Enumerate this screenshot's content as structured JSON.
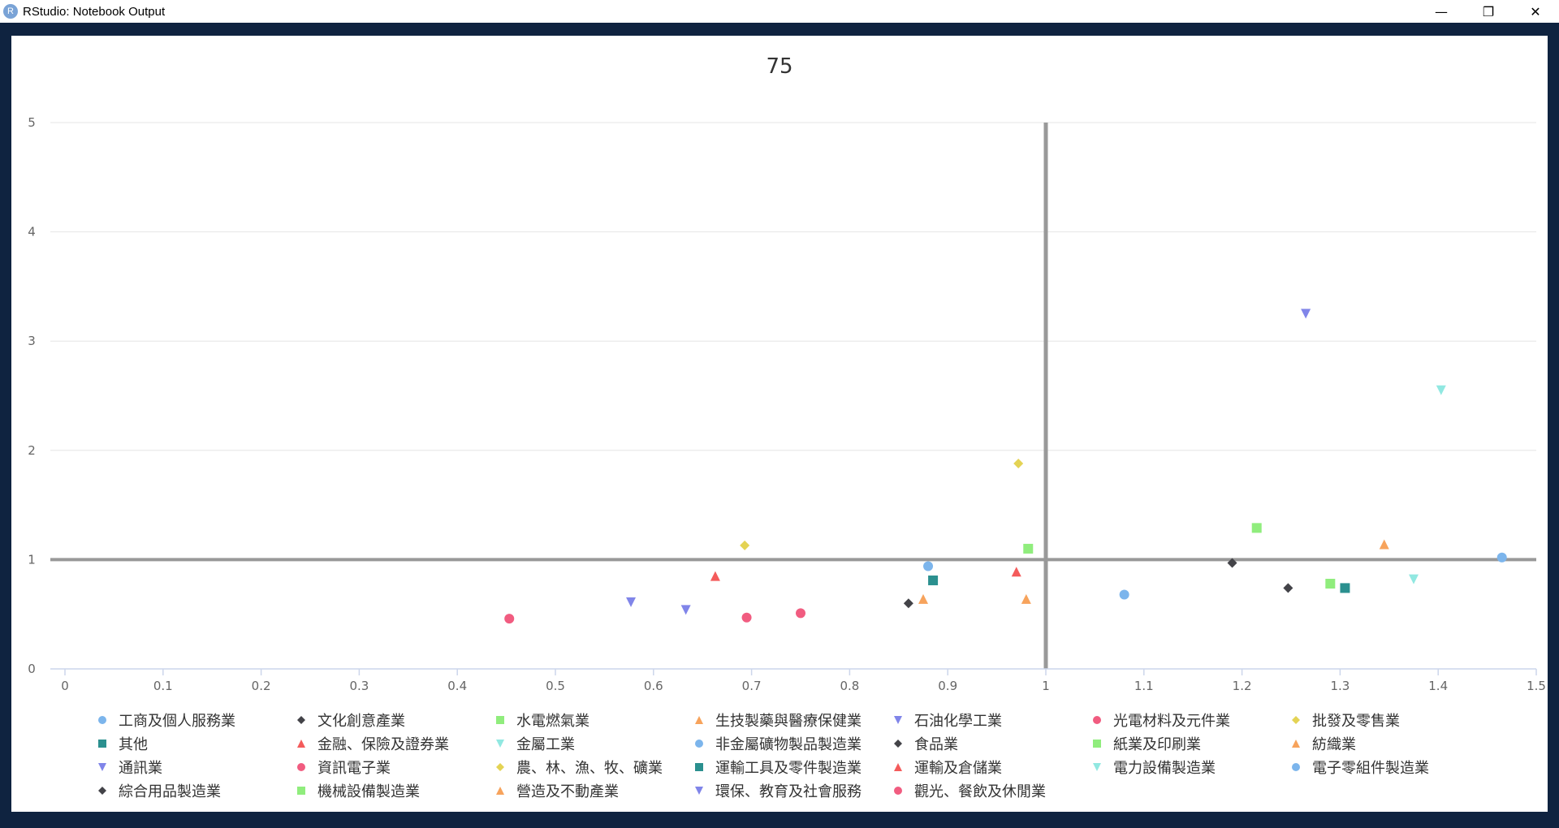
{
  "window": {
    "icon_letter": "R",
    "title": "RStudio: Notebook Output",
    "controls": {
      "minimize": "—",
      "restore": "❐",
      "close": "✕"
    }
  },
  "colors": {
    "frame": "#0f2340",
    "grid": "#e6e6e6",
    "axis": "#ccd6eb",
    "reference_line": "#999999"
  },
  "chart_data": {
    "type": "scatter",
    "title": "75",
    "xlabel": "",
    "ylabel": "",
    "xlim": [
      0,
      1.5
    ],
    "ylim": [
      0,
      5
    ],
    "x_ticks": [
      "0",
      "0.1",
      "0.2",
      "0.3",
      "0.4",
      "0.5",
      "0.6",
      "0.7",
      "0.8",
      "0.9",
      "1",
      "1.1",
      "1.2",
      "1.3",
      "1.4",
      "1.5"
    ],
    "y_ticks": [
      "0",
      "1",
      "2",
      "3",
      "4",
      "5"
    ],
    "grid": true,
    "reference_lines": {
      "x": 1,
      "y": 1
    },
    "legend_position": "bottom",
    "series": [
      {
        "name": "工商及個人服務業",
        "marker": "circle",
        "color": "#7cb5ec",
        "points": [
          [
            1.08,
            0.68
          ]
        ]
      },
      {
        "name": "文化創意產業",
        "marker": "diamond",
        "color": "#434348",
        "points": [
          [
            1.19,
            0.97
          ]
        ]
      },
      {
        "name": "水電燃氣業",
        "marker": "square",
        "color": "#90ed7d",
        "points": [
          [
            1.215,
            1.29
          ]
        ]
      },
      {
        "name": "生技製藥與醫療保健業",
        "marker": "triangle",
        "color": "#f7a35c",
        "points": [
          [
            1.345,
            1.14
          ]
        ]
      },
      {
        "name": "石油化學工業",
        "marker": "triangle-down",
        "color": "#8085e9",
        "points": [
          [
            1.265,
            3.25
          ]
        ]
      },
      {
        "name": "光電材料及元件業",
        "marker": "circle",
        "color": "#f15c80",
        "points": [
          [
            0.695,
            0.47
          ]
        ]
      },
      {
        "name": "批發及零售業",
        "marker": "diamond",
        "color": "#e4d354",
        "points": [
          [
            0.972,
            1.88
          ]
        ]
      },
      {
        "name": "其他",
        "marker": "square",
        "color": "#2b908f",
        "points": [
          [
            1.305,
            0.74
          ]
        ]
      },
      {
        "name": "金融、保險及證券業",
        "marker": "triangle",
        "color": "#f45b5b",
        "points": [
          [
            0.97,
            0.89
          ]
        ]
      },
      {
        "name": "金屬工業",
        "marker": "triangle-down",
        "color": "#91e8e1",
        "points": [
          [
            1.403,
            2.55
          ]
        ]
      },
      {
        "name": "非金屬礦物製品製造業",
        "marker": "circle",
        "color": "#7cb5ec",
        "points": [
          [
            0.88,
            0.94
          ]
        ]
      },
      {
        "name": "食品業",
        "marker": "diamond",
        "color": "#434348",
        "points": [
          [
            1.247,
            0.74
          ]
        ]
      },
      {
        "name": "紙業及印刷業",
        "marker": "square",
        "color": "#90ed7d",
        "points": [
          [
            1.29,
            0.78
          ]
        ]
      },
      {
        "name": "紡織業",
        "marker": "triangle",
        "color": "#f7a35c",
        "points": [
          [
            0.875,
            0.64
          ]
        ]
      },
      {
        "name": "通訊業",
        "marker": "triangle-down",
        "color": "#8085e9",
        "points": [
          [
            0.633,
            0.54
          ]
        ]
      },
      {
        "name": "資訊電子業",
        "marker": "circle",
        "color": "#f15c80",
        "points": [
          [
            0.75,
            0.51
          ]
        ]
      },
      {
        "name": "農、林、漁、牧、礦業",
        "marker": "diamond",
        "color": "#e4d354",
        "points": [
          [
            0.693,
            1.13
          ]
        ]
      },
      {
        "name": "運輸工具及零件製造業",
        "marker": "square",
        "color": "#2b908f",
        "points": [
          [
            0.885,
            0.81
          ]
        ]
      },
      {
        "name": "運輸及倉儲業",
        "marker": "triangle",
        "color": "#f45b5b",
        "points": [
          [
            0.663,
            0.85
          ]
        ]
      },
      {
        "name": "電力設備製造業",
        "marker": "triangle-down",
        "color": "#91e8e1",
        "points": [
          [
            1.375,
            0.82
          ]
        ]
      },
      {
        "name": "電子零組件製造業",
        "marker": "circle",
        "color": "#7cb5ec",
        "points": [
          [
            1.465,
            1.02
          ]
        ]
      },
      {
        "name": "綜合用品製造業",
        "marker": "diamond",
        "color": "#434348",
        "points": [
          [
            0.86,
            0.6
          ]
        ]
      },
      {
        "name": "機械設備製造業",
        "marker": "square",
        "color": "#90ed7d",
        "points": [
          [
            0.982,
            1.1
          ]
        ]
      },
      {
        "name": "營造及不動產業",
        "marker": "triangle",
        "color": "#f7a35c",
        "points": [
          [
            0.98,
            0.64
          ]
        ]
      },
      {
        "name": "環保、教育及社會服務",
        "marker": "triangle-down",
        "color": "#8085e9",
        "points": [
          [
            0.577,
            0.61
          ]
        ]
      },
      {
        "name": "觀光、餐飲及休閒業",
        "marker": "circle",
        "color": "#f15c80",
        "points": [
          [
            0.453,
            0.46
          ]
        ]
      }
    ]
  }
}
